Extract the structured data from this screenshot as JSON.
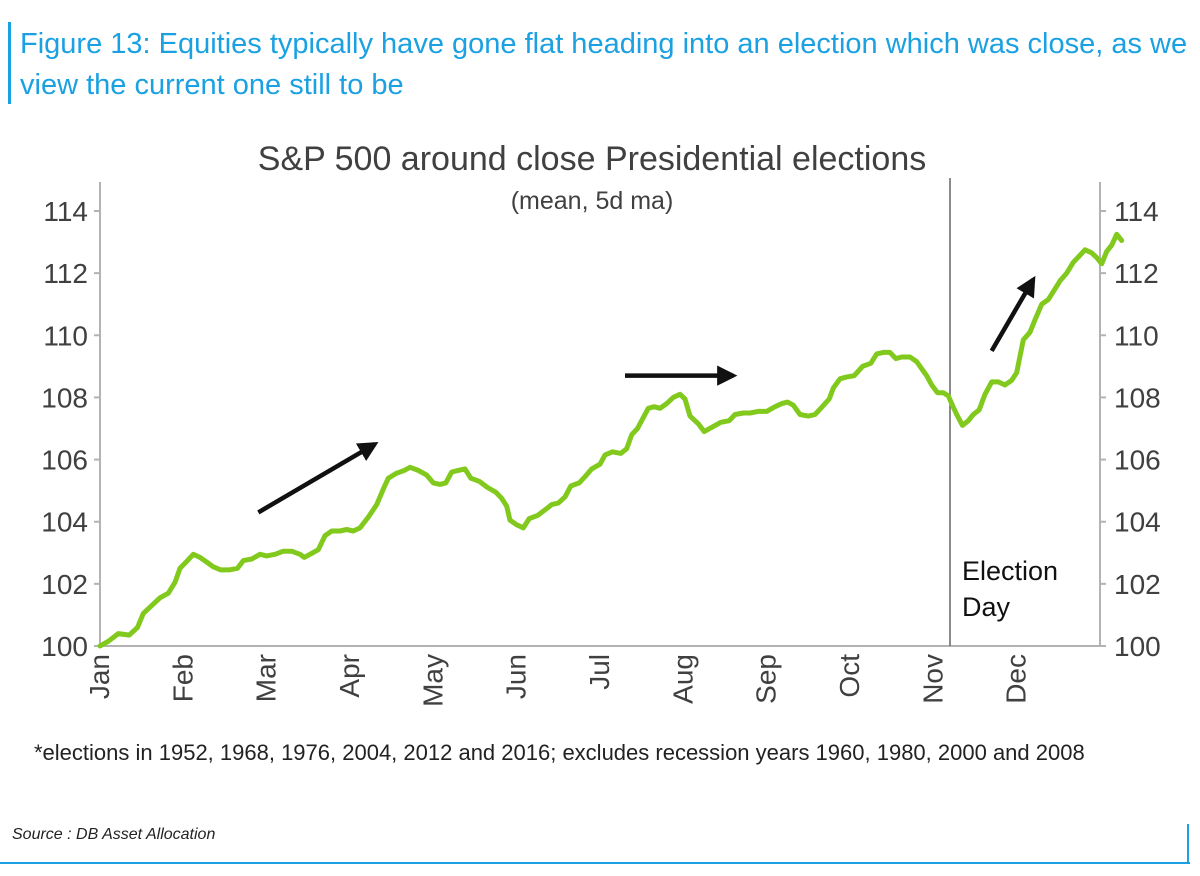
{
  "figure": {
    "title": "Figure 13: Equities typically have gone flat heading into an election which was close, as we view the current one still to be",
    "footnote": "*elections in 1952, 1968, 1976, 2004, 2012 and 2016; excludes recession years 1960, 1980, 2000 and 2008",
    "source": "Source : DB Asset Allocation",
    "accent_color": "#1ba1e2"
  },
  "chart_data": {
    "type": "line",
    "title": "S&P 500 around close Presidential elections",
    "subtitle": "(mean, 5d ma)",
    "xlabel": "",
    "ylabel": "",
    "x_unit": "months since start of year (Jan = 0)",
    "xlim": [
      0,
      12
    ],
    "ylim": [
      100,
      114
    ],
    "y_ticks": [
      100,
      102,
      104,
      106,
      108,
      110,
      112,
      114
    ],
    "x_ticks": [
      {
        "label": "Jan",
        "x": 0
      },
      {
        "label": "Feb",
        "x": 1
      },
      {
        "label": "Mar",
        "x": 2
      },
      {
        "label": "Apr",
        "x": 3
      },
      {
        "label": "May",
        "x": 4
      },
      {
        "label": "Jun",
        "x": 5
      },
      {
        "label": "Jul",
        "x": 6
      },
      {
        "label": "Aug",
        "x": 7
      },
      {
        "label": "Sep",
        "x": 8
      },
      {
        "label": "Oct",
        "x": 9
      },
      {
        "label": "Nov",
        "x": 10
      },
      {
        "label": "Dec",
        "x": 11
      }
    ],
    "axes": {
      "left": true,
      "right": true,
      "grid": false
    },
    "series": [
      {
        "name": "S&P 500 (mean, 5d ma)",
        "color": "#82c91e",
        "points": [
          [
            0.0,
            100.0
          ],
          [
            0.1,
            100.15
          ],
          [
            0.22,
            100.4
          ],
          [
            0.35,
            100.35
          ],
          [
            0.45,
            100.6
          ],
          [
            0.52,
            101.05
          ],
          [
            0.62,
            101.3
          ],
          [
            0.72,
            101.55
          ],
          [
            0.82,
            101.7
          ],
          [
            0.9,
            102.05
          ],
          [
            0.96,
            102.5
          ],
          [
            1.05,
            102.75
          ],
          [
            1.12,
            102.95
          ],
          [
            1.2,
            102.85
          ],
          [
            1.28,
            102.7
          ],
          [
            1.36,
            102.55
          ],
          [
            1.45,
            102.45
          ],
          [
            1.55,
            102.45
          ],
          [
            1.65,
            102.5
          ],
          [
            1.72,
            102.75
          ],
          [
            1.82,
            102.8
          ],
          [
            1.92,
            102.95
          ],
          [
            2.0,
            102.9
          ],
          [
            2.1,
            102.95
          ],
          [
            2.2,
            103.05
          ],
          [
            2.3,
            103.05
          ],
          [
            2.4,
            102.95
          ],
          [
            2.45,
            102.85
          ],
          [
            2.52,
            102.95
          ],
          [
            2.62,
            103.1
          ],
          [
            2.7,
            103.55
          ],
          [
            2.78,
            103.7
          ],
          [
            2.88,
            103.7
          ],
          [
            2.96,
            103.75
          ],
          [
            3.04,
            103.7
          ],
          [
            3.12,
            103.8
          ],
          [
            3.22,
            104.15
          ],
          [
            3.32,
            104.55
          ],
          [
            3.4,
            105.05
          ],
          [
            3.46,
            105.4
          ],
          [
            3.55,
            105.55
          ],
          [
            3.65,
            105.65
          ],
          [
            3.72,
            105.75
          ],
          [
            3.82,
            105.65
          ],
          [
            3.92,
            105.5
          ],
          [
            4.0,
            105.25
          ],
          [
            4.08,
            105.2
          ],
          [
            4.15,
            105.25
          ],
          [
            4.22,
            105.6
          ],
          [
            4.3,
            105.65
          ],
          [
            4.38,
            105.7
          ],
          [
            4.45,
            105.4
          ],
          [
            4.55,
            105.3
          ],
          [
            4.65,
            105.1
          ],
          [
            4.75,
            104.95
          ],
          [
            4.82,
            104.75
          ],
          [
            4.88,
            104.5
          ],
          [
            4.92,
            104.05
          ],
          [
            5.0,
            103.9
          ],
          [
            5.08,
            103.8
          ],
          [
            5.15,
            104.1
          ],
          [
            5.25,
            104.2
          ],
          [
            5.35,
            104.4
          ],
          [
            5.42,
            104.55
          ],
          [
            5.5,
            104.6
          ],
          [
            5.58,
            104.8
          ],
          [
            5.65,
            105.15
          ],
          [
            5.75,
            105.25
          ],
          [
            5.82,
            105.45
          ],
          [
            5.9,
            105.7
          ],
          [
            6.0,
            105.85
          ],
          [
            6.06,
            106.15
          ],
          [
            6.15,
            106.25
          ],
          [
            6.25,
            106.2
          ],
          [
            6.32,
            106.35
          ],
          [
            6.38,
            106.8
          ],
          [
            6.45,
            107.0
          ],
          [
            6.52,
            107.35
          ],
          [
            6.58,
            107.65
          ],
          [
            6.65,
            107.7
          ],
          [
            6.72,
            107.65
          ],
          [
            6.8,
            107.8
          ],
          [
            6.88,
            108.0
          ],
          [
            6.96,
            108.1
          ],
          [
            7.02,
            107.95
          ],
          [
            7.08,
            107.4
          ],
          [
            7.18,
            107.15
          ],
          [
            7.25,
            106.9
          ],
          [
            7.35,
            107.05
          ],
          [
            7.45,
            107.2
          ],
          [
            7.55,
            107.25
          ],
          [
            7.62,
            107.45
          ],
          [
            7.72,
            107.5
          ],
          [
            7.8,
            107.5
          ],
          [
            7.9,
            107.55
          ],
          [
            8.0,
            107.55
          ],
          [
            8.1,
            107.7
          ],
          [
            8.18,
            107.8
          ],
          [
            8.25,
            107.85
          ],
          [
            8.32,
            107.75
          ],
          [
            8.4,
            107.45
          ],
          [
            8.5,
            107.4
          ],
          [
            8.58,
            107.45
          ],
          [
            8.65,
            107.65
          ],
          [
            8.75,
            107.95
          ],
          [
            8.8,
            108.3
          ],
          [
            8.88,
            108.6
          ],
          [
            8.95,
            108.65
          ],
          [
            9.05,
            108.7
          ],
          [
            9.15,
            109.0
          ],
          [
            9.25,
            109.1
          ],
          [
            9.32,
            109.4
          ],
          [
            9.4,
            109.45
          ],
          [
            9.48,
            109.45
          ],
          [
            9.55,
            109.25
          ],
          [
            9.62,
            109.3
          ],
          [
            9.72,
            109.3
          ],
          [
            9.8,
            109.15
          ],
          [
            9.88,
            108.85
          ],
          [
            9.92,
            108.7
          ],
          [
            9.98,
            108.4
          ],
          [
            10.05,
            108.15
          ],
          [
            10.12,
            108.15
          ],
          [
            10.18,
            108.05
          ],
          [
            10.22,
            107.8
          ],
          [
            10.28,
            107.45
          ],
          [
            10.35,
            107.1
          ],
          [
            10.42,
            107.25
          ],
          [
            10.48,
            107.45
          ],
          [
            10.55,
            107.6
          ],
          [
            10.62,
            108.1
          ],
          [
            10.7,
            108.5
          ],
          [
            10.78,
            108.5
          ],
          [
            10.86,
            108.4
          ],
          [
            10.94,
            108.55
          ],
          [
            11.0,
            108.8
          ],
          [
            11.08,
            109.85
          ],
          [
            11.16,
            110.1
          ],
          [
            11.22,
            110.5
          ],
          [
            11.3,
            111.0
          ],
          [
            11.38,
            111.15
          ],
          [
            11.45,
            111.45
          ],
          [
            11.52,
            111.75
          ],
          [
            11.6,
            112.0
          ],
          [
            11.68,
            112.35
          ],
          [
            11.75,
            112.55
          ],
          [
            11.82,
            112.75
          ],
          [
            11.9,
            112.65
          ],
          [
            11.96,
            112.5
          ],
          [
            12.02,
            112.3
          ],
          [
            12.08,
            112.7
          ],
          [
            12.14,
            112.9
          ],
          [
            12.2,
            113.25
          ],
          [
            12.26,
            113.05
          ]
        ]
      }
    ],
    "annotations": [
      {
        "type": "vline",
        "x": 10.2,
        "color": "#666666",
        "text_lines": [
          "Election",
          "Day"
        ]
      },
      {
        "type": "arrow",
        "from": [
          1.9,
          104.3
        ],
        "to": [
          3.3,
          106.5
        ],
        "color": "#111111"
      },
      {
        "type": "arrow",
        "from": [
          6.3,
          108.7
        ],
        "to": [
          7.6,
          108.7
        ],
        "color": "#111111"
      },
      {
        "type": "arrow",
        "from": [
          10.7,
          109.5
        ],
        "to": [
          11.2,
          111.8
        ],
        "color": "#111111"
      }
    ]
  }
}
